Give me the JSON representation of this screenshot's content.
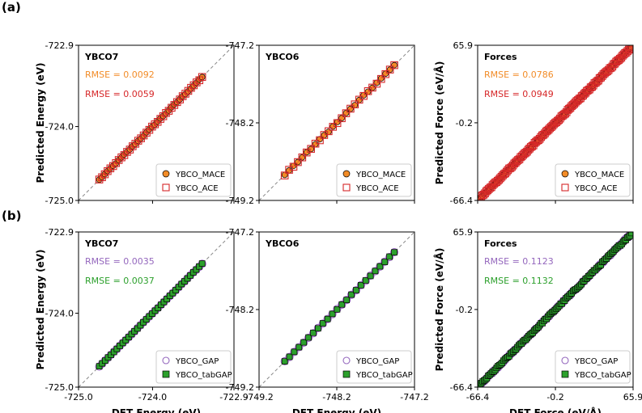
{
  "figure": {
    "row_labels": [
      "(a)",
      "(b)"
    ],
    "xlabels": [
      "DFT Energy (eV)",
      "DFT Energy (eV)",
      "DFT Force (eV/Å)"
    ]
  },
  "styles": {
    "MACE": {
      "marker": "circle",
      "fill": "#f28c28",
      "edge": "#000000"
    },
    "ACE": {
      "marker": "square",
      "fill": "none",
      "edge": "#d62728"
    },
    "GAP": {
      "marker": "circle",
      "fill": "none",
      "edge": "#9467bd"
    },
    "tabGAP": {
      "marker": "square",
      "fill": "#2ca02c",
      "edge": "#000000"
    }
  },
  "chart_data": [
    {
      "type": "scatter",
      "row": 0,
      "col": 0,
      "panel_label": "YBCO7",
      "ylabel": "Predicted Energy (eV)",
      "xlabel": "",
      "xlim": [
        -725.0,
        -722.9
      ],
      "ylim": [
        -725.0,
        -722.9
      ],
      "xticks": [
        -725.0,
        -724.0,
        -722.9
      ],
      "yticks": [
        "-722.9",
        "-724.0",
        "-725.0"
      ],
      "xticklabels": [],
      "diagonal": true,
      "grid": false,
      "legend_position": "lower-right",
      "rmse": [
        {
          "text": "RMSE = 0.0092",
          "color": "#f28c28"
        },
        {
          "text": "RMSE = 0.0059",
          "color": "#d62728"
        }
      ],
      "series": [
        {
          "name": "YBCO_MACE",
          "style": "MACE",
          "x_range": [
            -724.72,
            -723.33
          ],
          "count": 38,
          "jitter": 0.006
        },
        {
          "name": "YBCO_ACE",
          "style": "ACE",
          "x_range": [
            -724.72,
            -723.33
          ],
          "count": 38,
          "jitter": 0.006
        }
      ]
    },
    {
      "type": "scatter",
      "row": 0,
      "col": 1,
      "panel_label": "YBCO6",
      "ylabel": "",
      "xlabel": "",
      "xlim": [
        -749.2,
        -747.2
      ],
      "ylim": [
        -749.2,
        -747.2
      ],
      "xticks": [
        -749.2,
        -748.2,
        -747.2
      ],
      "yticks": [
        "-747.2",
        "-748.2",
        "-749.2"
      ],
      "xticklabels": [],
      "diagonal": true,
      "grid": false,
      "legend_position": "lower-right",
      "rmse": [],
      "series": [
        {
          "name": "YBCO_MACE",
          "style": "MACE",
          "x_range": [
            -748.87,
            -747.46
          ],
          "count": 26,
          "jitter": 0.01
        },
        {
          "name": "YBCO_ACE",
          "style": "ACE",
          "x_range": [
            -748.87,
            -747.46
          ],
          "count": 26,
          "jitter": 0.01
        }
      ]
    },
    {
      "type": "scatter",
      "row": 0,
      "col": 2,
      "panel_label": "Forces",
      "ylabel": "Predicted Force (eV/Å)",
      "xlabel": "",
      "xlim": [
        -66.4,
        65.9
      ],
      "ylim": [
        -66.4,
        65.9
      ],
      "xticks": [
        -66.4,
        -0.2,
        65.9
      ],
      "yticks": [
        "65.9",
        "-0.2",
        "-66.4"
      ],
      "xticklabels": [],
      "diagonal": true,
      "grid": false,
      "legend_position": "lower-right",
      "rmse": [
        {
          "text": "RMSE = 0.0786",
          "color": "#f28c28"
        },
        {
          "text": "RMSE = 0.0949",
          "color": "#d62728"
        }
      ],
      "series": [
        {
          "name": "YBCO_MACE",
          "style": "MACE",
          "x_range": [
            -64.5,
            64.5
          ],
          "count": 120,
          "jitter": 0.5
        },
        {
          "name": "YBCO_ACE",
          "style": "ACE",
          "x_range": [
            -64.5,
            64.5
          ],
          "count": 120,
          "jitter": 0.5
        }
      ]
    },
    {
      "type": "scatter",
      "row": 1,
      "col": 0,
      "panel_label": "YBCO7",
      "ylabel": "Predicted Energy (eV)",
      "xlabel": "DFT Energy (eV)",
      "xlim": [
        -725.0,
        -722.9
      ],
      "ylim": [
        -725.0,
        -722.9
      ],
      "xticks": [
        -725.0,
        -724.0,
        -722.9
      ],
      "yticks": [
        "-722.9",
        "-724.0",
        "-725.0"
      ],
      "xticklabels": [
        "-725.0",
        "-724.0",
        "-722.9"
      ],
      "diagonal": true,
      "grid": false,
      "legend_position": "lower-right",
      "rmse": [
        {
          "text": "RMSE = 0.0035",
          "color": "#9467bd"
        },
        {
          "text": "RMSE = 0.0037",
          "color": "#2ca02c"
        }
      ],
      "series": [
        {
          "name": "YBCO_GAP",
          "style": "GAP",
          "x_range": [
            -724.72,
            -723.33
          ],
          "count": 36,
          "jitter": 0.003
        },
        {
          "name": "YBCO_tabGAP",
          "style": "tabGAP",
          "x_range": [
            -724.72,
            -723.33
          ],
          "count": 36,
          "jitter": 0.003
        }
      ]
    },
    {
      "type": "scatter",
      "row": 1,
      "col": 1,
      "panel_label": "YBCO6",
      "ylabel": "",
      "xlabel": "DFT Energy (eV)",
      "xlim": [
        -749.2,
        -747.2
      ],
      "ylim": [
        -749.2,
        -747.2
      ],
      "xticks": [
        -749.2,
        -748.2,
        -747.2
      ],
      "yticks": [
        "-747.2",
        "-748.2",
        "-749.2"
      ],
      "xticklabels": [
        "-749.2",
        "-748.2",
        "-747.2"
      ],
      "diagonal": true,
      "grid": false,
      "legend_position": "lower-right",
      "rmse": [],
      "series": [
        {
          "name": "YBCO_GAP",
          "style": "GAP",
          "x_range": [
            -748.87,
            -747.46
          ],
          "count": 24,
          "jitter": 0.004
        },
        {
          "name": "YBCO_tabGAP",
          "style": "tabGAP",
          "x_range": [
            -748.87,
            -747.46
          ],
          "count": 24,
          "jitter": 0.004
        }
      ]
    },
    {
      "type": "scatter",
      "row": 1,
      "col": 2,
      "panel_label": "Forces",
      "ylabel": "Predicted Force (eV/Å)",
      "xlabel": "DFT Force (eV/Å)",
      "xlim": [
        -66.4,
        65.9
      ],
      "ylim": [
        -66.4,
        65.9
      ],
      "xticks": [
        -66.4,
        -0.2,
        65.9
      ],
      "yticks": [
        "65.9",
        "-0.2",
        "-66.4"
      ],
      "xticklabels": [
        "-66.4",
        "-0.2",
        "65.9"
      ],
      "diagonal": true,
      "grid": false,
      "legend_position": "lower-right",
      "rmse": [
        {
          "text": "RMSE = 0.1123",
          "color": "#9467bd"
        },
        {
          "text": "RMSE = 0.1132",
          "color": "#2ca02c"
        }
      ],
      "series": [
        {
          "name": "YBCO_GAP",
          "style": "GAP",
          "x_range": [
            -64.5,
            64.5
          ],
          "count": 110,
          "jitter": 0.7
        },
        {
          "name": "YBCO_tabGAP",
          "style": "tabGAP",
          "x_range": [
            -64.5,
            64.5
          ],
          "count": 110,
          "jitter": 0.7
        }
      ]
    }
  ]
}
